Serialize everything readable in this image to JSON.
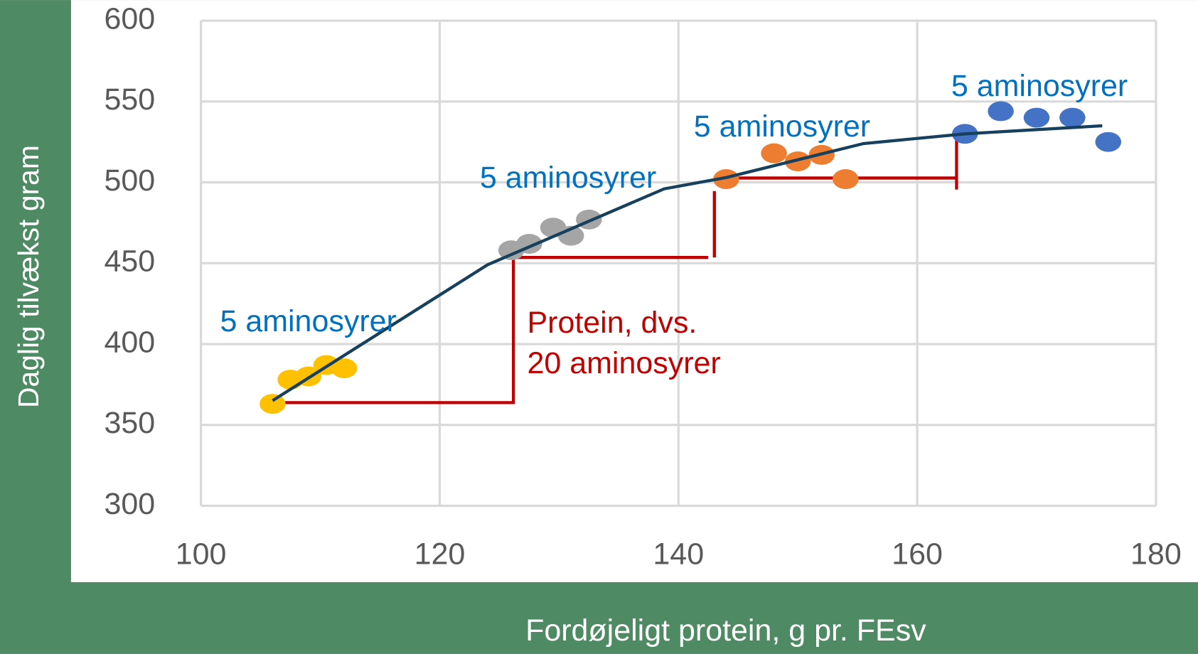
{
  "chart_data": {
    "type": "scatter",
    "x_label": "Fordøjeligt protein, g pr. FEsv",
    "y_label": "Daglig tilvækst gram",
    "xlim": [
      100,
      180
    ],
    "xticks": [
      100,
      120,
      140,
      160,
      180
    ],
    "ylim": [
      300,
      600
    ],
    "yticks": [
      300,
      350,
      400,
      450,
      500,
      550,
      600
    ],
    "grid": true,
    "series": [
      {
        "color": "#ffc000",
        "x": [
          106,
          107.5,
          109,
          110.5,
          112
        ],
        "values": [
          363,
          378,
          380,
          387,
          385
        ]
      },
      {
        "color": "#a5a5a5",
        "x": [
          126,
          127.5,
          129.5,
          131,
          132.5
        ],
        "values": [
          458,
          462,
          472,
          467,
          477
        ]
      },
      {
        "color": "#ed7d31",
        "x": [
          144,
          148,
          150,
          152,
          154
        ],
        "values": [
          502,
          518,
          513,
          517,
          502
        ]
      },
      {
        "color": "#4472c4",
        "x": [
          164,
          167,
          170,
          173,
          176
        ],
        "values": [
          530,
          544,
          540,
          540,
          525
        ]
      }
    ],
    "trend": {
      "color": "#17405c",
      "x": [
        106,
        124,
        138.8,
        144,
        155.5,
        164,
        175.5
      ],
      "values": [
        365,
        449,
        496,
        503,
        524,
        530,
        535
      ]
    },
    "annotations": [
      "5 aminosyrer",
      "5 aminosyrer",
      "5 aminosyrer",
      "5 aminosyrer"
    ],
    "protein_note": [
      "Protein, dvs.",
      "20 aminosyrer"
    ]
  }
}
